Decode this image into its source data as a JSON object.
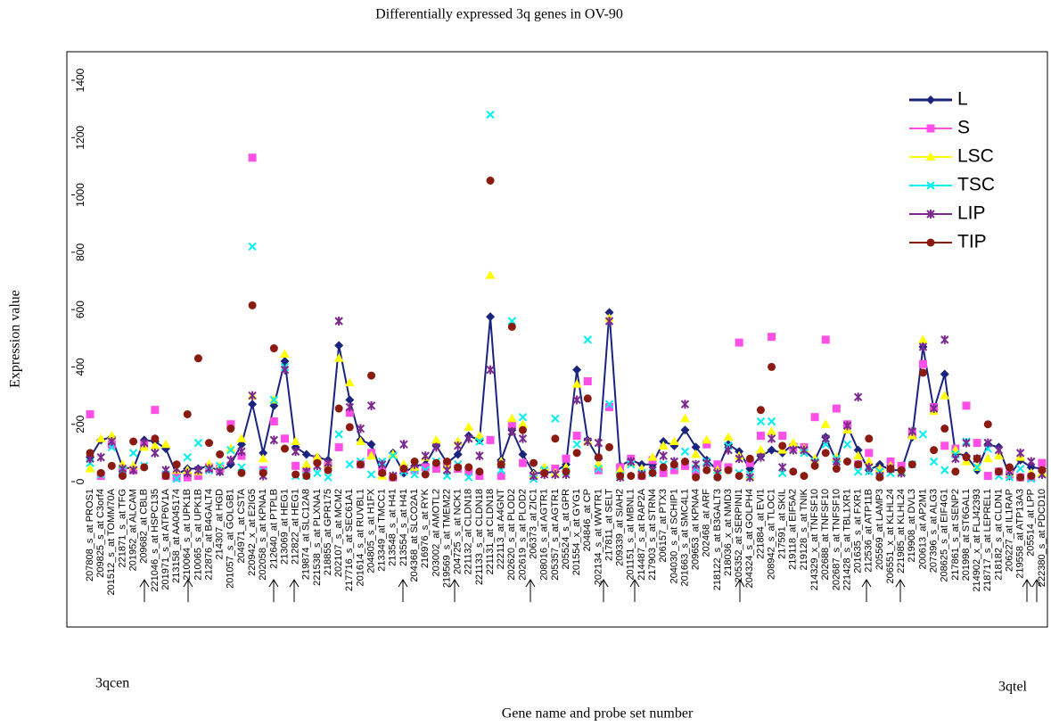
{
  "chart_data": {
    "type": "line",
    "title": "Differentially expressed 3q genes in OV-90",
    "x_label": "Gene name and probe set number",
    "y_label": "Expression value",
    "annotations": [
      "3qcen",
      "3qtel"
    ],
    "ylim": [
      0,
      1400
    ],
    "yticks": [
      0,
      200,
      400,
      600,
      800,
      1000,
      1200,
      1400
    ],
    "grid": false,
    "legend": "upper right",
    "categories": [
      "207808_s_at PROS1",
      "209825_s_at C3orf4",
      "201512_s_at TOMM70A",
      "221871_s_at TFG",
      "201952_at ALCAM",
      "209682_at CBLB",
      "221046_s_at HSPC135",
      "201971_s_at ATP6V1A",
      "213158_at AA045174",
      "210064_s_at UPK1B",
      "210065_s_at UPK1B",
      "212876_at B4GALT4",
      "214307_at HGD",
      "201057_s_at GOLGB1",
      "204971_at CSTA",
      "220942_x_at E2IG5",
      "202058_s_at KPNA1",
      "212640_at PTPLB",
      "213069_at HEG1",
      "212822_at HEG1",
      "219874_at SLC12A8",
      "221538_s_at PLXNA1",
      "218855_at GPR175",
      "202107_s_at MCM2",
      "217716_s_at SEC61A1",
      "201614_s_at RUVBL1",
      "204805_s_at H1FX",
      "213349_at TMCC1",
      "213548_s_at H41",
      "213554_s_at H41",
      "204368_at SLCO2A1",
      "216976_s_at RYK",
      "203002_at AMOTL2",
      "219569_s_at TMEM22",
      "204725_s_at NCK1",
      "221132_at CLDN18",
      "221133_s_at CLDN18",
      "221131_at CLDN18",
      "222113_at A4GNT",
      "202620_s_at PLOD2",
      "202619_s_at PLOD2",
      "206373_at ZIC1",
      "208016_s_at AGTR1",
      "205357_s_at AGTR1",
      "205524_s_at GPR",
      "201554_x_at GYG1",
      "204846_at CP",
      "202134_s_at WWTR1",
      "217811_at SELT",
      "209339_at SIAH2",
      "201151_s_at MBNL1",
      "214487_s_at RAP2A",
      "217903_s_at STRN4",
      "206157_at PTX3",
      "204030_s_at SCHIP1",
      "201663_s_at SMC4L1",
      "209653_at KPNA4",
      "202468_at ARF",
      "218122_s_at B3GALT3",
      "218036_x_at NMD3",
      "205352_at SERPINI1",
      "204324_s_at GOLPH4",
      "221884_at EVI1",
      "208942_s_at TLOC1",
      "217591_at SKIL",
      "219118_at EIF5A2",
      "219128_s_at TNIK",
      "214329_x_at TNFSF10",
      "202688_at TNFSF10",
      "202687_s_at TNFSF10",
      "221428_s_at TBL1XR1",
      "201635_s_at FXR1",
      "212536_at ATP11B",
      "205569_at LAMP3",
      "206551_x_at KLHL24",
      "221985_at KLHL24",
      "219908_at DVL3",
      "200613_at AP2M1",
      "207396_s_at ALG3",
      "208625_s_at EIF4G1",
      "217861_s_at SENP2",
      "201998_at ST6GAL1",
      "214902_x_at FLJ42393",
      "218717_s_at LEPREL1",
      "218182_s_at CLDN1",
      "206227_at IL1RAP",
      "219558_at ATP13A3",
      "205514_at LPP",
      "222380_s_at PDCD10"
    ],
    "series": [
      {
        "name": "L",
        "color": "#1a237e",
        "marker": "diamond",
        "line": true,
        "values": [
          85,
          145,
          155,
          50,
          45,
          145,
          140,
          115,
          25,
          45,
          45,
          55,
          35,
          60,
          130,
          270,
          100,
          265,
          420,
          120,
          95,
          85,
          75,
          475,
          285,
          145,
          130,
          25,
          100,
          30,
          55,
          60,
          125,
          65,
          95,
          160,
          145,
          575,
          75,
          180,
          95,
          30,
          30,
          35,
          60,
          390,
          145,
          80,
          590,
          55,
          75,
          60,
          60,
          140,
          125,
          180,
          120,
          75,
          40,
          130,
          105,
          45,
          90,
          110,
          100,
          130,
          110,
          75,
          155,
          70,
          195,
          110,
          40,
          60,
          40,
          40,
          155,
          470,
          250,
          375,
          100,
          90,
          40,
          130,
          120,
          20,
          75,
          50,
          45
        ]
      },
      {
        "name": "S",
        "color": "#ff4fe6",
        "marker": "square",
        "line": false,
        "values": [
          235,
          20,
          130,
          35,
          40,
          130,
          250,
          20,
          15,
          15,
          20,
          50,
          45,
          200,
          90,
          1130,
          40,
          210,
          150,
          55,
          40,
          75,
          55,
          120,
          240,
          60,
          100,
          35,
          15,
          45,
          40,
          50,
          45,
          60,
          45,
          35,
          20,
          145,
          20,
          200,
          65,
          20,
          35,
          45,
          80,
          160,
          350,
          40,
          260,
          50,
          80,
          20,
          75,
          30,
          40,
          55,
          35,
          130,
          60,
          50,
          485,
          65,
          160,
          505,
          160,
          120,
          120,
          225,
          495,
          255,
          200,
          60,
          100,
          35,
          70,
          55,
          170,
          410,
          260,
          125,
          115,
          265,
          135,
          20,
          35,
          25,
          15,
          15,
          65
        ]
      },
      {
        "name": "LSC",
        "color": "#ffff00",
        "marker": "triangle",
        "line": false,
        "values": [
          45,
          150,
          160,
          60,
          55,
          120,
          125,
          130,
          40,
          40,
          35,
          60,
          55,
          115,
          150,
          300,
          80,
          285,
          445,
          140,
          60,
          85,
          60,
          430,
          345,
          140,
          90,
          20,
          95,
          60,
          50,
          85,
          145,
          55,
          140,
          190,
          160,
          720,
          70,
          220,
          200,
          25,
          50,
          30,
          50,
          340,
          140,
          60,
          570,
          40,
          65,
          45,
          85,
          125,
          140,
          220,
          95,
          145,
          40,
          155,
          90,
          20,
          110,
          175,
          110,
          135,
          115,
          80,
          200,
          85,
          180,
          90,
          70,
          45,
          55,
          35,
          160,
          495,
          245,
          300,
          110,
          70,
          50,
          80,
          90,
          30,
          85,
          30,
          30
        ]
      },
      {
        "name": "TSC",
        "color": "#00f0f0",
        "marker": "x",
        "line": false,
        "values": [
          65,
          25,
          120,
          40,
          100,
          55,
          100,
          25,
          10,
          85,
          135,
          40,
          55,
          110,
          50,
          820,
          35,
          285,
          400,
          20,
          20,
          30,
          15,
          165,
          60,
          70,
          25,
          70,
          90,
          35,
          25,
          40,
          70,
          20,
          60,
          15,
          140,
          1280,
          40,
          560,
          225,
          10,
          40,
          220,
          35,
          130,
          495,
          45,
          270,
          20,
          60,
          30,
          30,
          60,
          55,
          105,
          45,
          70,
          20,
          125,
          30,
          25,
          210,
          210,
          30,
          110,
          100,
          70,
          130,
          80,
          130,
          35,
          35,
          35,
          30,
          35,
          60,
          165,
          70,
          40,
          95,
          140,
          50,
          115,
          20,
          15,
          45,
          10,
          25
        ]
      },
      {
        "name": "LIP",
        "color": "#7b2a8e",
        "marker": "star",
        "line": false,
        "values": [
          80,
          85,
          140,
          45,
          40,
          135,
          100,
          40,
          45,
          30,
          40,
          45,
          35,
          75,
          105,
          300,
          20,
          145,
          390,
          105,
          35,
          55,
          65,
          560,
          260,
          185,
          265,
          60,
          20,
          130,
          60,
          90,
          120,
          40,
          125,
          150,
          90,
          390,
          60,
          175,
          150,
          20,
          25,
          25,
          25,
          285,
          140,
          135,
          560,
          15,
          70,
          25,
          40,
          90,
          70,
          270,
          60,
          65,
          30,
          110,
          80,
          15,
          85,
          150,
          50,
          110,
          110,
          65,
          150,
          70,
          195,
          295,
          50,
          20,
          45,
          30,
          175,
          470,
          255,
          495,
          80,
          135,
          80,
          135,
          110,
          35,
          100,
          70,
          25
        ]
      },
      {
        "name": "TIP",
        "color": "#8b1a10",
        "marker": "circle",
        "line": false,
        "values": [
          100,
          30,
          55,
          20,
          140,
          50,
          150,
          20,
          60,
          235,
          430,
          135,
          95,
          185,
          30,
          615,
          30,
          465,
          115,
          25,
          20,
          65,
          40,
          255,
          190,
          60,
          370,
          30,
          15,
          45,
          70,
          25,
          65,
          70,
          50,
          50,
          35,
          1050,
          60,
          540,
          180,
          65,
          30,
          150,
          35,
          100,
          290,
          85,
          120,
          20,
          20,
          20,
          30,
          50,
          60,
          70,
          15,
          40,
          15,
          40,
          20,
          80,
          250,
          400,
          125,
          35,
          20,
          55,
          100,
          45,
          70,
          60,
          150,
          15,
          45,
          40,
          60,
          380,
          110,
          185,
          35,
          85,
          80,
          200,
          35,
          50,
          15,
          20,
          40
        ]
      }
    ]
  }
}
